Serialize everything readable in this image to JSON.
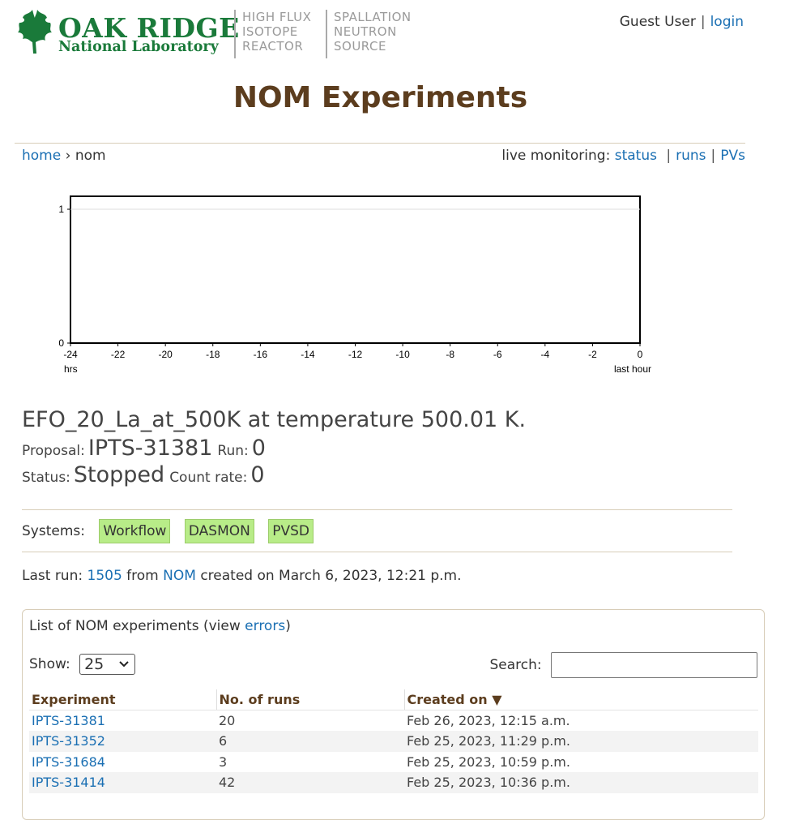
{
  "header": {
    "logo_line1": "OAK RIDGE",
    "logo_line2": "National Laboratory",
    "facility1": [
      "HIGH FLUX",
      "ISOTOPE",
      "REACTOR"
    ],
    "facility2": [
      "SPALLATION",
      "NEUTRON",
      "SOURCE"
    ],
    "user": "Guest User",
    "user_sep": "|",
    "login": "login"
  },
  "page_title": "NOM Experiments",
  "nav": {
    "home": "home",
    "arrow": "›",
    "current": "nom",
    "live_label": "live monitoring:",
    "status": "status",
    "runs": "runs",
    "pvs": "PVs",
    "sep": "|"
  },
  "chart_data": {
    "type": "line",
    "x": [
      -24,
      -22,
      -20,
      -18,
      -16,
      -14,
      -12,
      -10,
      -8,
      -6,
      -4,
      -2,
      0
    ],
    "xticks": [
      "-24",
      "-22",
      "-20",
      "-18",
      "-16",
      "-14",
      "-12",
      "-10",
      "-8",
      "-6",
      "-4",
      "-2",
      "0"
    ],
    "yticks": [
      "0",
      "1"
    ],
    "ylim": [
      0,
      1
    ],
    "xlim": [
      -24,
      0
    ],
    "xlabel_left": "hrs",
    "xlabel_right": "last hour",
    "series": [],
    "grid": true
  },
  "experiment": {
    "title": "EFO_20_La_at_500K at temperature 500.01 K.",
    "proposal_label": "Proposal:",
    "proposal": "IPTS-31381",
    "run_label": "Run:",
    "run": "0",
    "status_label": "Status:",
    "status": "Stopped",
    "count_rate_label": "Count rate:",
    "count_rate": "0"
  },
  "systems": {
    "label": "Systems:",
    "items": [
      "Workflow",
      "DASMON",
      "PVSD"
    ],
    "badge_color": "#b8ec88"
  },
  "last_run": {
    "prefix": "Last run:",
    "run": "1505",
    "from": "from",
    "instrument": "NOM",
    "suffix": "created on March 6, 2023, 12:21 p.m."
  },
  "experiments_list": {
    "title_prefix": "List of NOM experiments (view",
    "errors_link": "errors",
    "title_suffix": ")",
    "show_label": "Show:",
    "show_value": "25",
    "search_label": "Search:",
    "columns": [
      "Experiment",
      "No. of runs",
      "Created on ▼"
    ],
    "rows": [
      {
        "experiment": "IPTS-31381",
        "runs": "20",
        "created": "Feb 26, 2023, 12:15 a.m."
      },
      {
        "experiment": "IPTS-31352",
        "runs": "6",
        "created": "Feb 25, 2023, 11:29 p.m."
      },
      {
        "experiment": "IPTS-31684",
        "runs": "3",
        "created": "Feb 25, 2023, 10:59 p.m."
      },
      {
        "experiment": "IPTS-31414",
        "runs": "42",
        "created": "Feb 25, 2023, 10:36 p.m."
      }
    ]
  },
  "colors": {
    "title_brown": "#5c3d1e",
    "link_blue": "#1a6fb3",
    "logo_green": "#1a7a3a"
  }
}
